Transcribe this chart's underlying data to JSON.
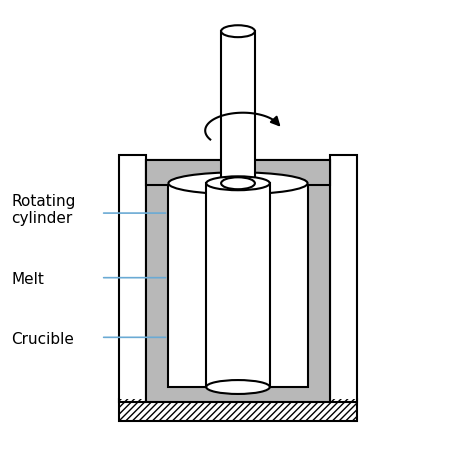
{
  "fig_width": 4.75,
  "fig_height": 4.53,
  "dpi": 100,
  "bg_color": "#ffffff",
  "line_color": "#000000",
  "gray_color": "#b8b8b8",
  "label_line_color": "#6aaad4",
  "labels": [
    "Rotating\ncylinder",
    "Melt",
    "Crucible"
  ],
  "label_fontsize": 11
}
